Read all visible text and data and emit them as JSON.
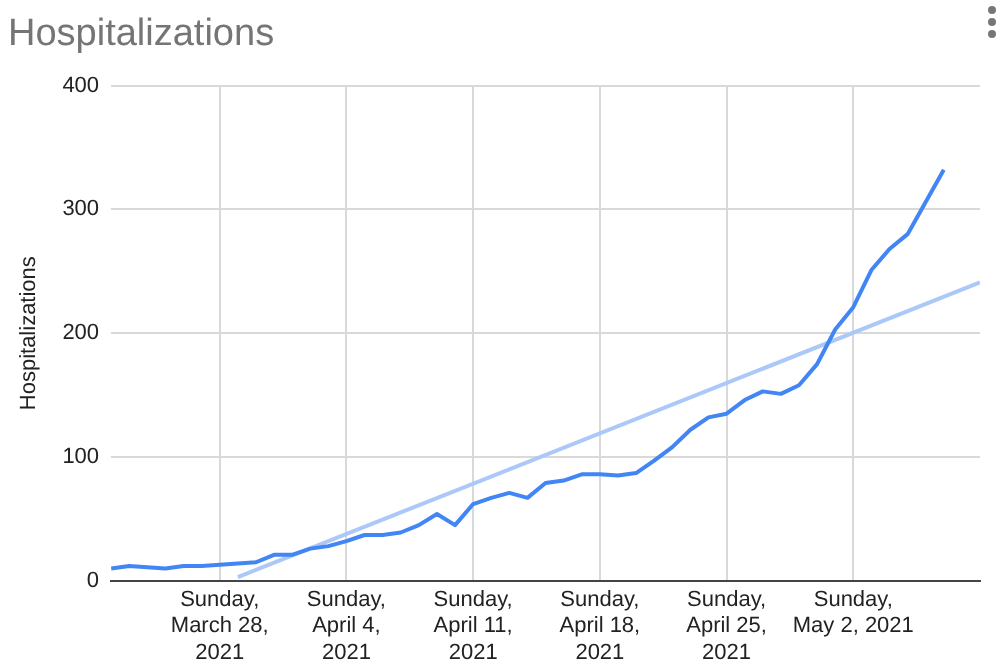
{
  "chart_data": {
    "type": "line",
    "title": "Hospitalizations",
    "ylabel": "Hospitalizations",
    "x": [
      "2021-03-22",
      "2021-03-23",
      "2021-03-24",
      "2021-03-25",
      "2021-03-26",
      "2021-03-27",
      "2021-03-28",
      "2021-03-29",
      "2021-03-30",
      "2021-03-31",
      "2021-04-01",
      "2021-04-02",
      "2021-04-03",
      "2021-04-04",
      "2021-04-05",
      "2021-04-06",
      "2021-04-07",
      "2021-04-08",
      "2021-04-09",
      "2021-04-10",
      "2021-04-11",
      "2021-04-12",
      "2021-04-13",
      "2021-04-14",
      "2021-04-15",
      "2021-04-16",
      "2021-04-17",
      "2021-04-18",
      "2021-04-19",
      "2021-04-20",
      "2021-04-21",
      "2021-04-22",
      "2021-04-23",
      "2021-04-24",
      "2021-04-25",
      "2021-04-26",
      "2021-04-27",
      "2021-04-28",
      "2021-04-29",
      "2021-04-30",
      "2021-05-01",
      "2021-05-02",
      "2021-05-03",
      "2021-05-04",
      "2021-05-05",
      "2021-05-06",
      "2021-05-07"
    ],
    "series": [
      {
        "color": "#4285f4",
        "values": [
          10,
          12,
          11,
          10,
          12,
          12,
          13,
          14,
          15,
          21,
          21,
          26,
          28,
          32,
          37,
          37,
          39,
          45,
          54,
          45,
          62,
          67,
          71,
          67,
          79,
          81,
          86,
          86,
          85,
          87,
          97,
          108,
          122,
          132,
          135,
          146,
          153,
          151,
          158,
          175,
          203,
          221,
          251,
          268,
          280,
          306,
          332
        ]
      },
      {
        "type": "line",
        "color": "#abc8f8",
        "x": [
          "2021-03-29",
          "2021-05-09"
        ],
        "values": [
          3,
          241
        ]
      }
    ],
    "xlim": [
      "2021-03-22",
      "2021-05-09"
    ],
    "xticks": [
      {
        "value": "2021-03-28",
        "label": "Sunday, March 28, 2021"
      },
      {
        "value": "2021-04-04",
        "label": "Sunday, April 4, 2021"
      },
      {
        "value": "2021-04-11",
        "label": "Sunday, April 11, 2021"
      },
      {
        "value": "2021-04-18",
        "label": "Sunday, April 18, 2021"
      },
      {
        "value": "2021-04-25",
        "label": "Sunday, April 25, 2021"
      },
      {
        "value": "2021-05-02",
        "label": "Sunday, May 2, 2021"
      }
    ],
    "ylim": [
      0,
      400
    ],
    "yticks": [
      0,
      100,
      200,
      300,
      400
    ],
    "grid": true,
    "legend": false,
    "marker": "none",
    "line_style": "solid"
  }
}
